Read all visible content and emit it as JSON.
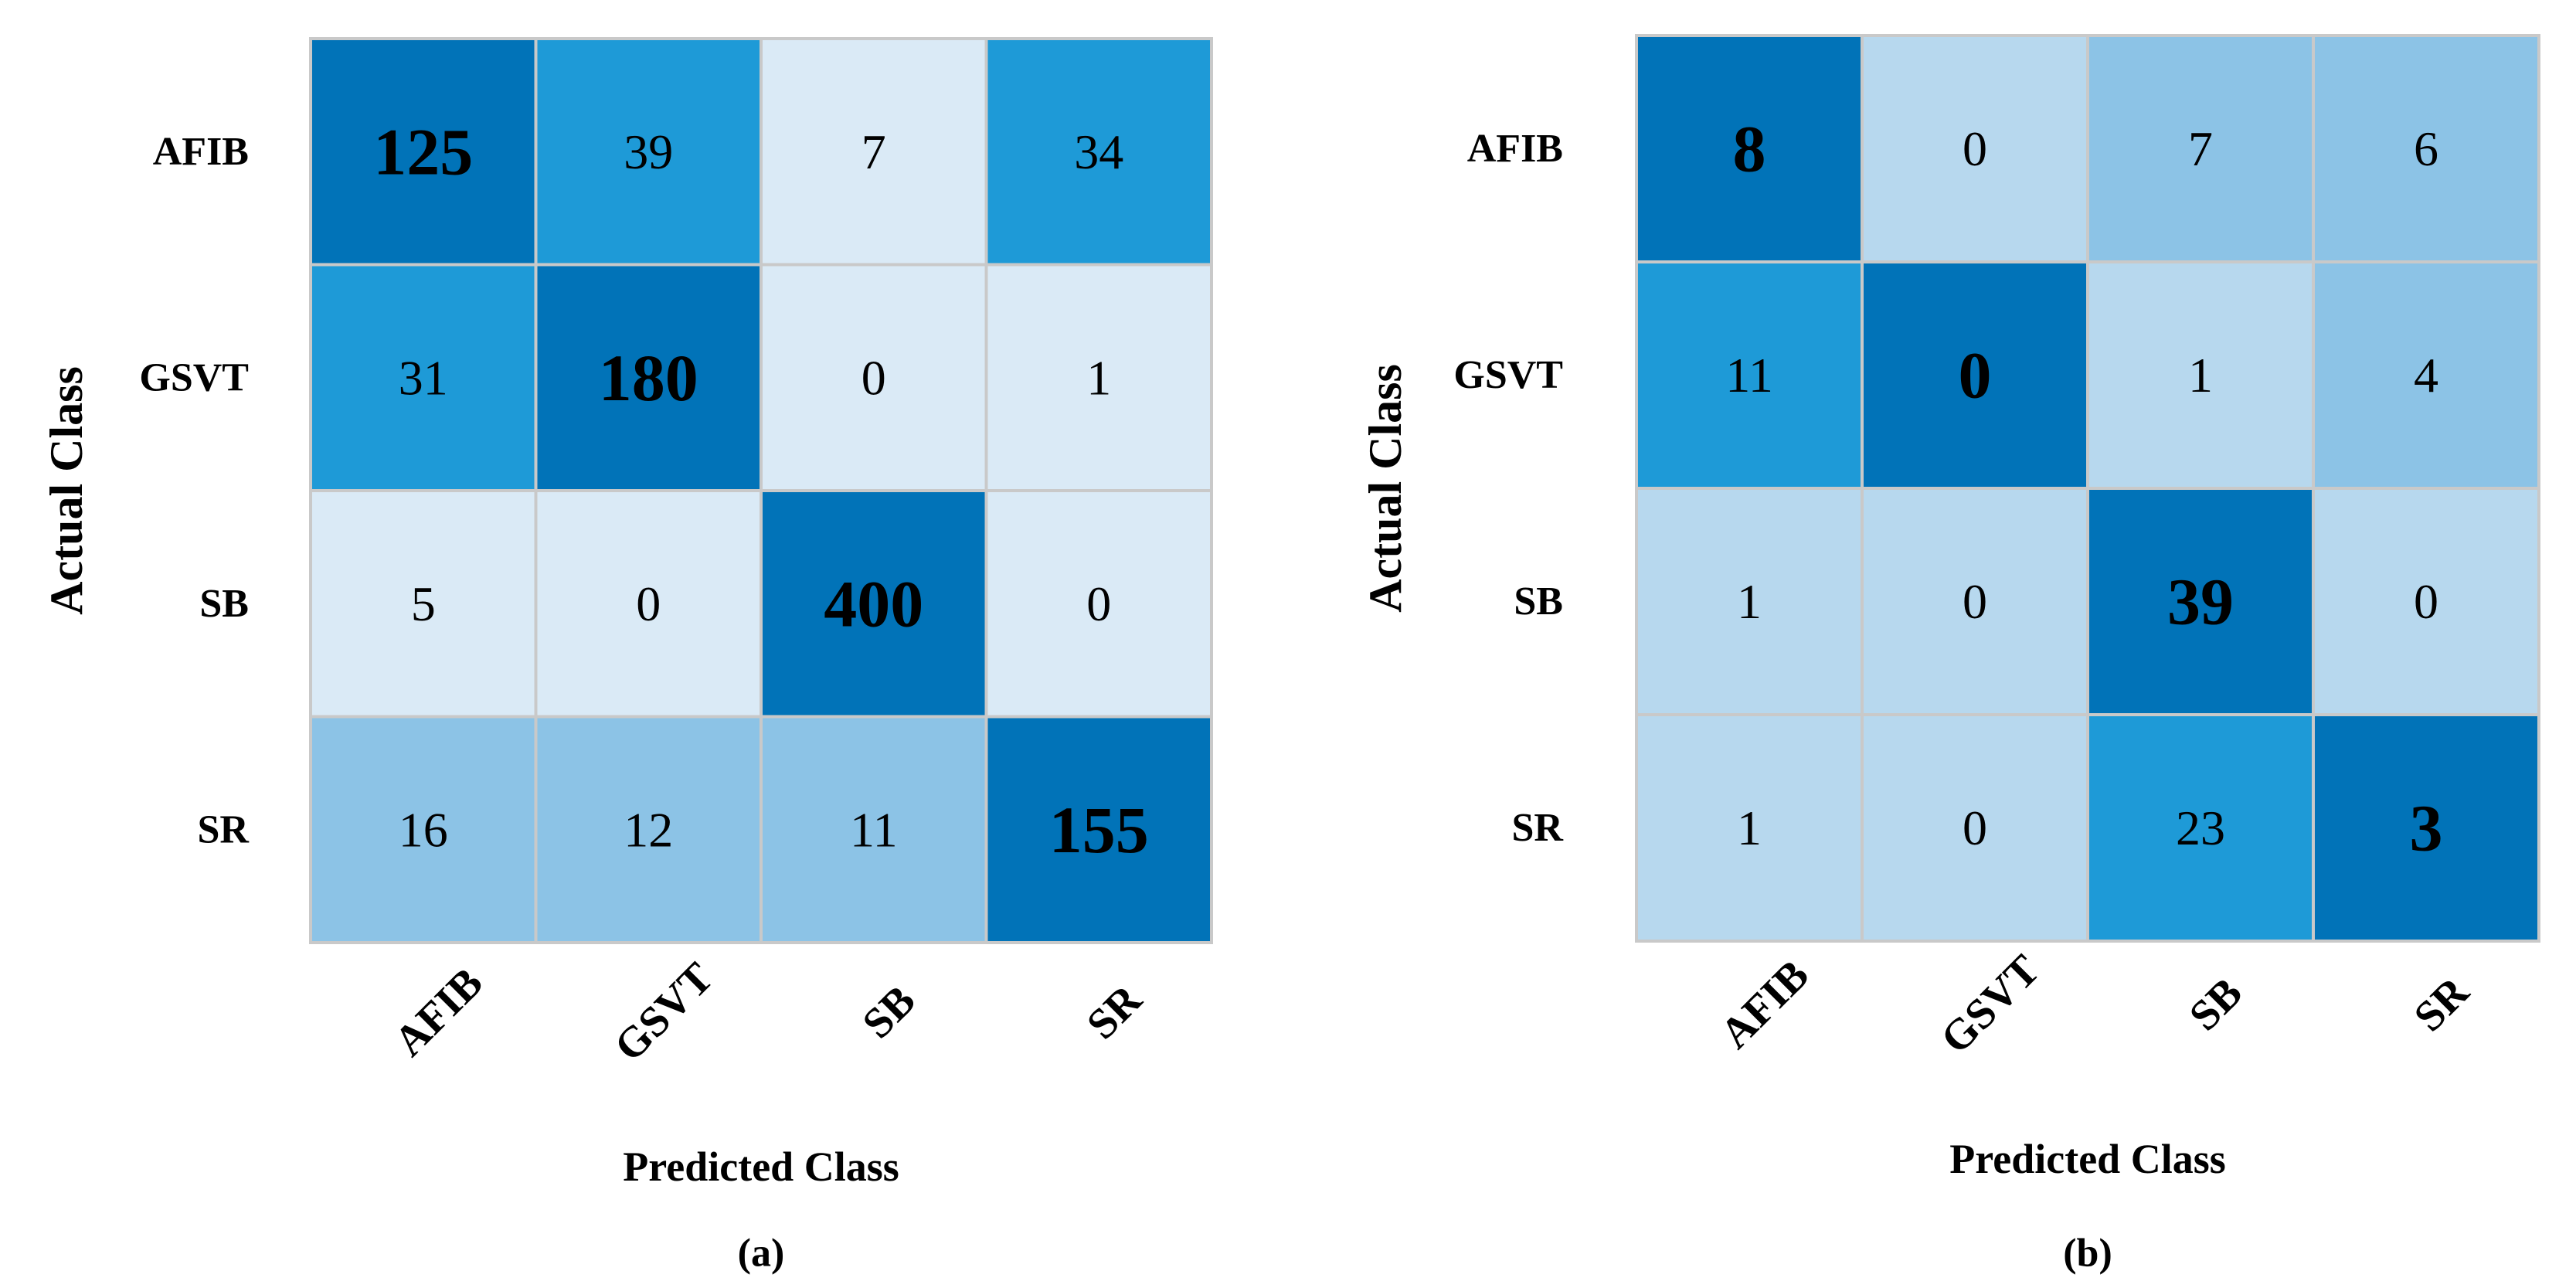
{
  "chart_data": [
    {
      "type": "heatmap",
      "panel_label": "(a)",
      "ylabel": "Actual Class",
      "xlabel": "Predicted Class",
      "row_labels": [
        "AFIB",
        "GSVT",
        "SB",
        "SR"
      ],
      "col_labels": [
        "AFIB",
        "GSVT",
        "SB",
        "SR"
      ],
      "matrix": [
        [
          125,
          39,
          7,
          34
        ],
        [
          31,
          180,
          0,
          1
        ],
        [
          5,
          0,
          400,
          0
        ],
        [
          16,
          12,
          11,
          155
        ]
      ],
      "cell_colors": [
        [
          "#0173b8",
          "#1e9ad7",
          "#daeaf6",
          "#1e9ad7"
        ],
        [
          "#1e9ad7",
          "#0173b8",
          "#daeaf6",
          "#daeaf6"
        ],
        [
          "#daeaf6",
          "#daeaf6",
          "#0173b8",
          "#daeaf6"
        ],
        [
          "#8cc3e6",
          "#8cc3e6",
          "#8cc3e6",
          "#0173b8"
        ]
      ]
    },
    {
      "type": "heatmap",
      "panel_label": "(b)",
      "ylabel": "Actual Class",
      "xlabel": "Predicted Class",
      "row_labels": [
        "AFIB",
        "GSVT",
        "SB",
        "SR"
      ],
      "col_labels": [
        "AFIB",
        "GSVT",
        "SB",
        "SR"
      ],
      "matrix": [
        [
          8,
          0,
          7,
          6
        ],
        [
          11,
          0,
          1,
          4
        ],
        [
          1,
          0,
          39,
          0
        ],
        [
          1,
          0,
          23,
          3
        ]
      ],
      "cell_colors": [
        [
          "#0173b8",
          "#b7d8ee",
          "#8cc3e6",
          "#8cc3e6"
        ],
        [
          "#1e9ad7",
          "#0173b8",
          "#b7d8ee",
          "#8cc3e6"
        ],
        [
          "#b7d8ee",
          "#b7d8ee",
          "#0173b8",
          "#b7d8ee"
        ],
        [
          "#b7d8ee",
          "#b7d8ee",
          "#1e9ad7",
          "#0173b8"
        ]
      ]
    }
  ],
  "colors": {
    "grid_line": "#c9c9c9",
    "text": "#000000"
  }
}
